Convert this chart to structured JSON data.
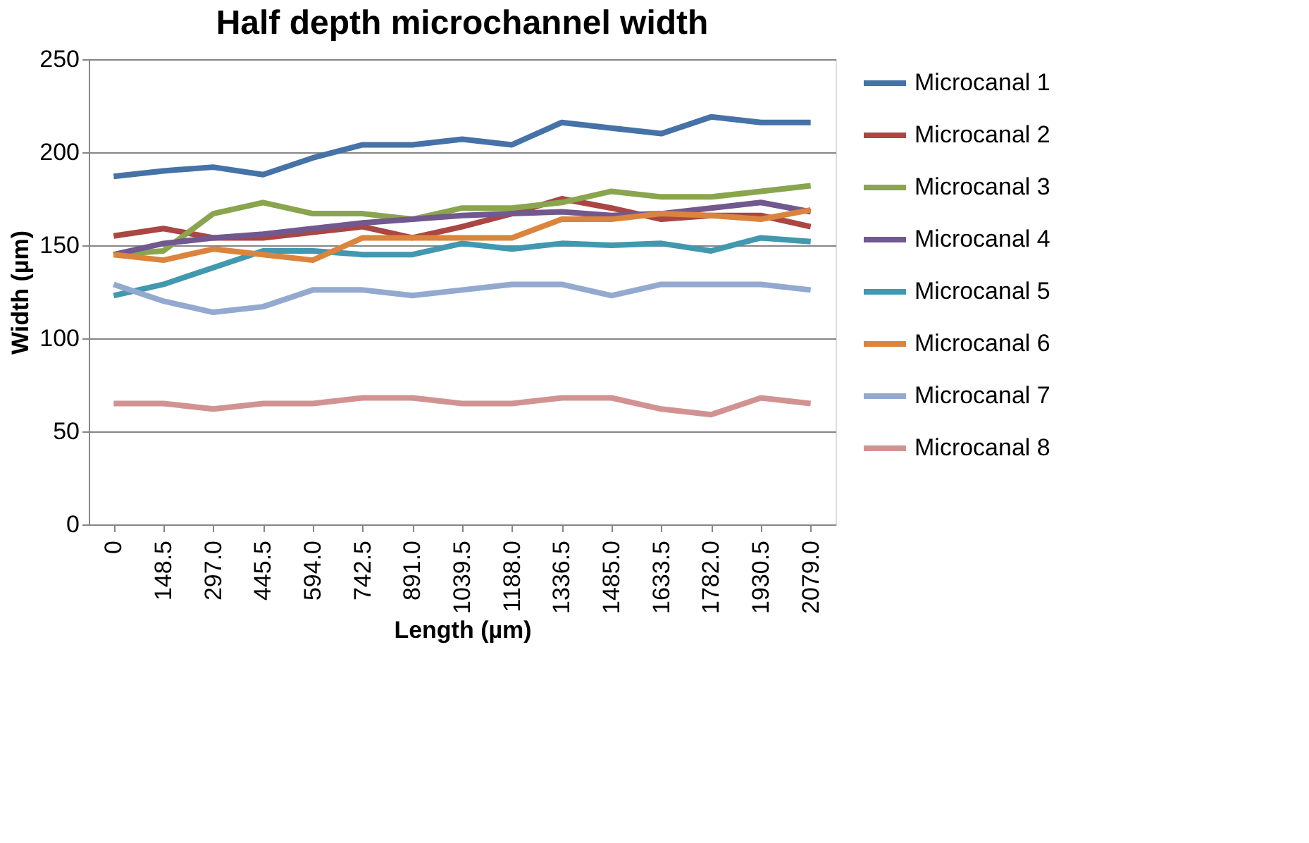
{
  "chart_data": {
    "type": "line",
    "title": "Half depth microchannel width",
    "xlabel": "Length (µm)",
    "ylabel": "Width (µm)",
    "categories": [
      "0",
      "148.5",
      "297.0",
      "445.5",
      "594.0",
      "742.5",
      "891.0",
      "1039.5",
      "1188.0",
      "1336.5",
      "1485.0",
      "1633.5",
      "1782.0",
      "1930.5",
      "2079.0"
    ],
    "series": [
      {
        "name": "Microcanal 1",
        "color": "#4572a7",
        "values": [
          187,
          190,
          192,
          188,
          197,
          204,
          204,
          207,
          204,
          216,
          213,
          210,
          219,
          216,
          216
        ]
      },
      {
        "name": "Microcanal 2",
        "color": "#aa4643",
        "values": [
          155,
          159,
          154,
          154,
          157,
          160,
          154,
          160,
          167,
          175,
          170,
          164,
          166,
          166,
          160
        ]
      },
      {
        "name": "Microcanal 3",
        "color": "#89a54e",
        "values": [
          145,
          147,
          167,
          173,
          167,
          167,
          164,
          170,
          170,
          173,
          179,
          176,
          176,
          179,
          182
        ]
      },
      {
        "name": "Microcanal 4",
        "color": "#71588f",
        "values": [
          145,
          151,
          154,
          156,
          159,
          162,
          164,
          166,
          167,
          168,
          166,
          167,
          170,
          173,
          168
        ]
      },
      {
        "name": "Microcanal 5",
        "color": "#4198af",
        "values": [
          123,
          129,
          138,
          147,
          147,
          145,
          145,
          151,
          148,
          151,
          150,
          151,
          147,
          154,
          152
        ]
      },
      {
        "name": "Microcanal 6",
        "color": "#db843d",
        "values": [
          145,
          142,
          148,
          145,
          142,
          154,
          154,
          154,
          154,
          164,
          164,
          167,
          166,
          164,
          169
        ]
      },
      {
        "name": "Microcanal 7",
        "color": "#93a9cf",
        "values": [
          129,
          120,
          114,
          117,
          126,
          126,
          123,
          126,
          129,
          129,
          123,
          129,
          129,
          129,
          126
        ]
      },
      {
        "name": "Microcanal 8",
        "color": "#d19392",
        "values": [
          65,
          65,
          62,
          65,
          65,
          68,
          68,
          65,
          65,
          68,
          68,
          62,
          59,
          68,
          65
        ]
      }
    ],
    "ylim": [
      0,
      250
    ],
    "yticks": [
      0,
      50,
      100,
      150,
      200,
      250
    ],
    "grid": "y",
    "legend": "right",
    "marker": "none",
    "line_style": "solid"
  }
}
